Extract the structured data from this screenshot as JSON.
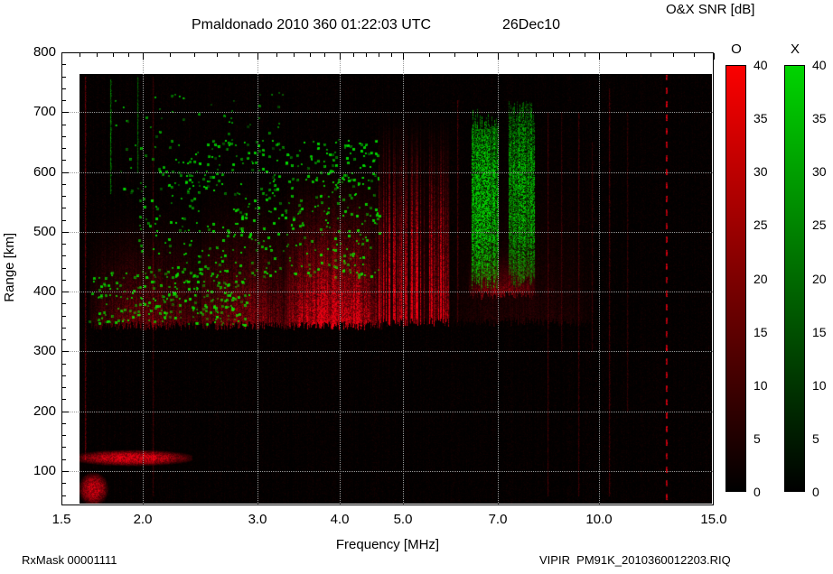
{
  "header": {
    "title": "Pmaldonado 2010 360 01:22:03 UTC",
    "date": "26Dec10",
    "colorbar_title": "O&X SNR [dB]"
  },
  "footer": {
    "rx_mask": "RxMask 00001111",
    "file": "VIPIR  PM91K_2010360012203.RIQ"
  },
  "chart_data": {
    "type": "heatmap",
    "title": "Pmaldonado 2010 360 01:22:03 UTC",
    "subtitle": "26Dec10",
    "instrument_label": "VIPIR  PM91K_2010360012203.RIQ",
    "rx_mask": "RxMask 00001111",
    "xlabel": "Frequency [MHz]",
    "ylabel": "Range [km]",
    "x_scale": "log",
    "xlim": [
      1.5,
      15.0
    ],
    "ylim": [
      45,
      805
    ],
    "x_ticks": [
      1.5,
      2.0,
      3.0,
      4.0,
      5.0,
      7.0,
      10.0,
      15.0
    ],
    "x_tick_labels": [
      "1.5",
      "2.0",
      "3.0",
      "4.0",
      "5.0",
      "7.0",
      "10.0",
      "15.0"
    ],
    "x_minor_ticks": [
      1.6,
      1.7,
      1.8,
      1.9,
      2.2,
      2.4,
      2.6,
      2.8,
      3.2,
      3.4,
      3.6,
      3.8,
      4.2,
      4.4,
      4.6,
      4.8,
      5.5,
      6,
      6.5,
      7.5,
      8,
      8.5,
      9,
      9.5,
      11,
      12,
      13,
      14
    ],
    "y_ticks": [
      100,
      200,
      300,
      400,
      500,
      600,
      700,
      800
    ],
    "y_minor_step": 20,
    "grid": true,
    "grid_color": "#999999",
    "colorbar_title": "O&X SNR [dB]",
    "colorbars": [
      {
        "label": "O",
        "units": "dB",
        "min": 0,
        "max": 40,
        "ticks": [
          0,
          5,
          10,
          15,
          20,
          25,
          30,
          35,
          40
        ],
        "color_low": "#000000",
        "color_high": "#fb0000"
      },
      {
        "label": "X",
        "units": "dB",
        "min": 0,
        "max": 40,
        "ticks": [
          0,
          5,
          10,
          15,
          20,
          25,
          30,
          35,
          40
        ],
        "color_low": "#000000",
        "color_high": "#00d400"
      }
    ],
    "features": [
      {
        "name": "background-noise-floor",
        "kind": "noise",
        "mode": "O",
        "f": [
          1.6,
          14.85
        ],
        "r": [
          46,
          762
        ],
        "intensity": 0.12,
        "snr_db": 2
      },
      {
        "name": "spread-F-left",
        "kind": "diffuse",
        "mode": "O",
        "f": [
          1.65,
          2.55
        ],
        "r": [
          345,
          565
        ],
        "intensity": 0.7,
        "snr_db": 14
      },
      {
        "name": "spread-F-mid",
        "kind": "diffuse",
        "mode": "O",
        "f": [
          2.45,
          3.4
        ],
        "r": [
          345,
          600
        ],
        "intensity": 0.9,
        "snr_db": 18
      },
      {
        "name": "spread-F-core",
        "kind": "diffuse",
        "mode": "O",
        "f": [
          3.3,
          4.65
        ],
        "r": [
          345,
          635
        ],
        "intensity": 1.8,
        "snr_db": 32
      },
      {
        "name": "spread-F-striations",
        "kind": "striated",
        "mode": "O",
        "f": [
          4.6,
          5.9
        ],
        "r": [
          350,
          700
        ],
        "intensity": 1.15,
        "snr_db": 24
      },
      {
        "name": "weak-high-freq-scatter",
        "kind": "diffuse",
        "mode": "O",
        "f": [
          5.9,
          9.8
        ],
        "r": [
          350,
          700
        ],
        "intensity": 0.22,
        "snr_db": 6
      },
      {
        "name": "o-echo-under-x-bands",
        "kind": "diffuse",
        "mode": "O",
        "f": [
          6.3,
          8.0
        ],
        "r": [
          395,
          485
        ],
        "intensity": 0.8,
        "snr_db": 15
      },
      {
        "name": "E-region-echo",
        "kind": "blob",
        "mode": "O",
        "f": [
          1.58,
          2.35
        ],
        "r": [
          110,
          135
        ],
        "intensity": 1.2,
        "snr_db": 20
      },
      {
        "name": "low-range-marks",
        "kind": "blob",
        "mode": "O",
        "f": [
          1.6,
          1.76
        ],
        "r": [
          46,
          96
        ],
        "intensity": 1.1,
        "snr_db": 18
      },
      {
        "name": "x-speckle-low",
        "kind": "speckle",
        "mode": "X",
        "f": [
          1.65,
          2.9
        ],
        "r": [
          345,
          435
        ],
        "count": 260,
        "intensity": 1.4,
        "snr_db": 25
      },
      {
        "name": "x-speckle-main",
        "kind": "speckle",
        "mode": "X",
        "f": [
          1.95,
          4.6
        ],
        "r": [
          425,
          655
        ],
        "count": 520,
        "intensity": 1.5,
        "snr_db": 27
      },
      {
        "name": "x-speckle-high",
        "kind": "speckle",
        "mode": "X",
        "f": [
          1.8,
          3.3
        ],
        "r": [
          560,
          735
        ],
        "count": 90,
        "intensity": 1.0,
        "snr_db": 18
      },
      {
        "name": "x-band-1",
        "kind": "band",
        "mode": "X",
        "f": [
          6.38,
          7.0
        ],
        "r": [
          415,
          690
        ],
        "intensity": 1.6,
        "snr_db": 30
      },
      {
        "name": "x-band-2",
        "kind": "band",
        "mode": "X",
        "f": [
          7.27,
          7.95
        ],
        "r": [
          420,
          700
        ],
        "intensity": 1.4,
        "snr_db": 28
      },
      {
        "name": "x-line-178",
        "kind": "vline",
        "mode": "X",
        "f": 1.78,
        "r": [
          565,
          755
        ],
        "intensity": 0.8,
        "snr_db": 12
      },
      {
        "name": "x-line-196",
        "kind": "vline",
        "mode": "X",
        "f": 1.96,
        "r": [
          600,
          760
        ],
        "intensity": 0.6,
        "snr_db": 10
      },
      {
        "name": "rfi-163",
        "kind": "vline",
        "mode": "O",
        "f": 1.63,
        "r": [
          120,
          760
        ],
        "intensity": 0.5,
        "snr_db": 8
      },
      {
        "name": "rfi-207",
        "kind": "vline",
        "mode": "O",
        "f": 2.07,
        "r": [
          60,
          760
        ],
        "intensity": 0.3,
        "snr_db": 6
      },
      {
        "name": "rfi-607",
        "kind": "vline",
        "mode": "O",
        "f": 6.07,
        "r": [
          350,
          720
        ],
        "intensity": 0.35,
        "snr_db": 7
      },
      {
        "name": "rfi-835",
        "kind": "vline",
        "mode": "O",
        "f": 8.35,
        "r": [
          60,
          700
        ],
        "intensity": 0.3,
        "snr_db": 6
      },
      {
        "name": "rfi-875",
        "kind": "vline",
        "mode": "O",
        "f": 8.75,
        "r": [
          300,
          700
        ],
        "intensity": 0.25,
        "snr_db": 5
      },
      {
        "name": "rfi-930",
        "kind": "vline",
        "mode": "O",
        "f": 9.3,
        "r": [
          60,
          700
        ],
        "intensity": 0.3,
        "snr_db": 6
      },
      {
        "name": "rfi-975",
        "kind": "vline",
        "mode": "O",
        "f": 9.75,
        "r": [
          300,
          650
        ],
        "intensity": 0.25,
        "snr_db": 5
      },
      {
        "name": "rfi-1035",
        "kind": "vline",
        "mode": "O",
        "f": 10.35,
        "r": [
          60,
          740
        ],
        "intensity": 0.35,
        "snr_db": 7
      },
      {
        "name": "rfi-1105",
        "kind": "vline",
        "mode": "O",
        "f": 11.05,
        "r": [
          200,
          700
        ],
        "intensity": 0.25,
        "snr_db": 5
      },
      {
        "name": "rfi-dashed-1266",
        "kind": "dashed_vline",
        "mode": "O",
        "f": 12.66,
        "r": [
          46,
          762
        ],
        "intensity": 1.0,
        "snr_db": 16
      }
    ]
  }
}
